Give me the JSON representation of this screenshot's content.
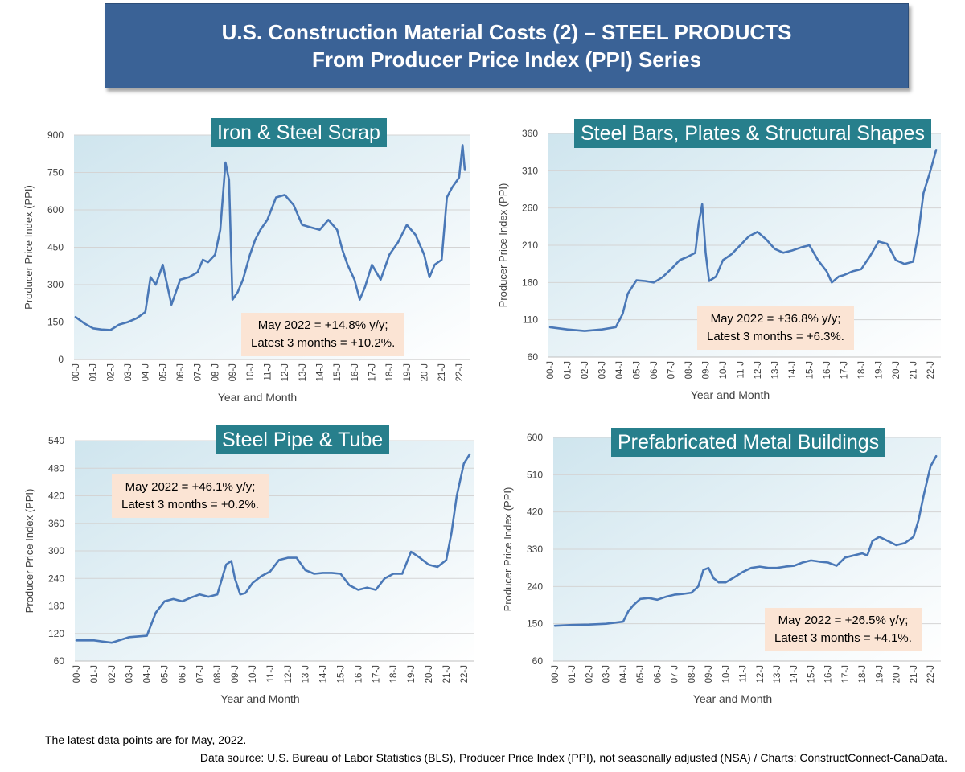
{
  "page": {
    "title_line1": "U.S. Construction Material Costs (2) – STEEL PRODUCTS",
    "title_line2": "From Producer Price Index (PPI) Series",
    "footnote1": "The latest data points are for May, 2022.",
    "footnote2": "Data source: U.S. Bureau of Labor Statistics (BLS), Producer Price Index (PPI), not seasonally adjusted (NSA) / Charts: ConstructConnect-CanaData."
  },
  "colors": {
    "banner": "#3a6296",
    "title_box": "#277f8c",
    "line": "#4a78b7",
    "note_box": "#fbe4d4"
  },
  "chart_data": [
    {
      "type": "line",
      "title": "Iron & Steel Scrap",
      "xlabel": "Year and Month",
      "ylabel": "Producer Price Index (PPI)",
      "ylim": [
        0,
        900
      ],
      "yticks": [
        0,
        150,
        300,
        450,
        600,
        750,
        900
      ],
      "xticks": [
        "00-J",
        "01-J",
        "02-J",
        "03-J",
        "04-J",
        "05-J",
        "06-J",
        "07-J",
        "08-J",
        "09-J",
        "10-J",
        "11-J",
        "12-J",
        "13-J",
        "14-J",
        "15-J",
        "16-J",
        "17-J",
        "18-J",
        "19-J",
        "20-J",
        "21-J",
        "22-J"
      ],
      "note_line1": "May 2022 = +14.8% y/y;",
      "note_line2": "Latest 3 months = +10.2%.",
      "grid": true,
      "series": [
        {
          "x": [
            2000.0,
            2000.5,
            2001.0,
            2001.5,
            2002.0,
            2002.5,
            2003.0,
            2003.5,
            2004.0,
            2004.3,
            2004.6,
            2005.0,
            2005.5,
            2006.0,
            2006.5,
            2007.0,
            2007.3,
            2007.6,
            2008.0,
            2008.3,
            2008.6,
            2008.8,
            2009.0,
            2009.3,
            2009.6,
            2010.0,
            2010.3,
            2010.6,
            2011.0,
            2011.5,
            2012.0,
            2012.5,
            2013.0,
            2013.5,
            2014.0,
            2014.5,
            2015.0,
            2015.3,
            2015.6,
            2016.0,
            2016.3,
            2016.6,
            2017.0,
            2017.5,
            2018.0,
            2018.5,
            2019.0,
            2019.5,
            2020.0,
            2020.3,
            2020.6,
            2021.0,
            2021.3,
            2021.6,
            2022.0,
            2022.2,
            2022.33
          ],
          "y": [
            170,
            145,
            125,
            120,
            118,
            140,
            150,
            165,
            190,
            330,
            300,
            380,
            220,
            320,
            330,
            350,
            400,
            390,
            420,
            520,
            790,
            720,
            240,
            270,
            320,
            420,
            480,
            520,
            560,
            650,
            660,
            620,
            540,
            530,
            520,
            560,
            520,
            440,
            380,
            320,
            240,
            290,
            380,
            320,
            420,
            470,
            540,
            500,
            420,
            330,
            380,
            400,
            650,
            690,
            730,
            860,
            760
          ]
        }
      ]
    },
    {
      "type": "line",
      "title": "Steel Bars, Plates & Structural Shapes",
      "xlabel": "Year and Month",
      "ylabel": "Producer Price Index (PPI)",
      "ylim": [
        60,
        360
      ],
      "yticks": [
        60,
        110,
        160,
        210,
        260,
        310,
        360
      ],
      "xticks": [
        "00-J",
        "01-J",
        "02-J",
        "03-J",
        "04-J",
        "05-J",
        "06-J",
        "07-J",
        "08-J",
        "09-J",
        "10-J",
        "11-J",
        "12-J",
        "13-J",
        "14-J",
        "15-J",
        "16-J",
        "17-J",
        "18-J",
        "19-J",
        "20-J",
        "21-J",
        "22-J"
      ],
      "note_line1": "May 2022 = +36.8% y/y;",
      "note_line2": "Latest 3 months = +6.3%.",
      "grid": true,
      "series": [
        {
          "x": [
            2000.0,
            2001.0,
            2002.0,
            2003.0,
            2003.8,
            2004.2,
            2004.5,
            2005.0,
            2005.5,
            2006.0,
            2006.5,
            2007.0,
            2007.5,
            2008.0,
            2008.4,
            2008.6,
            2008.8,
            2009.0,
            2009.2,
            2009.6,
            2010.0,
            2010.5,
            2011.0,
            2011.5,
            2012.0,
            2012.5,
            2013.0,
            2013.5,
            2014.0,
            2014.5,
            2015.0,
            2015.5,
            2016.0,
            2016.3,
            2016.7,
            2017.0,
            2017.5,
            2018.0,
            2018.5,
            2019.0,
            2019.5,
            2020.0,
            2020.5,
            2021.0,
            2021.3,
            2021.6,
            2022.0,
            2022.33
          ],
          "y": [
            100,
            97,
            95,
            97,
            100,
            118,
            145,
            163,
            162,
            160,
            167,
            178,
            190,
            195,
            200,
            240,
            265,
            200,
            162,
            168,
            190,
            198,
            210,
            222,
            228,
            218,
            205,
            200,
            203,
            207,
            210,
            190,
            175,
            160,
            168,
            170,
            175,
            178,
            195,
            215,
            212,
            190,
            185,
            188,
            225,
            280,
            310,
            338
          ]
        }
      ]
    },
    {
      "type": "line",
      "title": "Steel Pipe & Tube",
      "xlabel": "Year and Month",
      "ylabel": "Producer Price Index (PPI)",
      "ylim": [
        60,
        540
      ],
      "yticks": [
        60,
        120,
        180,
        240,
        300,
        360,
        420,
        480,
        540
      ],
      "xticks": [
        "00-J",
        "01-J",
        "02-J",
        "03-J",
        "04-J",
        "05-J",
        "06-J",
        "07-J",
        "08-J",
        "09-J",
        "10-J",
        "11-J",
        "12-J",
        "13-J",
        "14-J",
        "15-J",
        "16-J",
        "17-J",
        "18-J",
        "19-J",
        "20-J",
        "21-J",
        "22-J"
      ],
      "note_line1": "May 2022 = +46.1% y/y;",
      "note_line2": "Latest 3 months = +0.2%.",
      "grid": true,
      "series": [
        {
          "x": [
            2000.0,
            2001.0,
            2002.0,
            2003.0,
            2004.0,
            2004.5,
            2005.0,
            2005.5,
            2006.0,
            2006.5,
            2007.0,
            2007.5,
            2008.0,
            2008.5,
            2008.8,
            2009.0,
            2009.3,
            2009.6,
            2010.0,
            2010.5,
            2011.0,
            2011.5,
            2012.0,
            2012.5,
            2013.0,
            2013.5,
            2014.0,
            2014.5,
            2015.0,
            2015.5,
            2016.0,
            2016.5,
            2017.0,
            2017.5,
            2018.0,
            2018.5,
            2019.0,
            2019.5,
            2020.0,
            2020.5,
            2021.0,
            2021.3,
            2021.6,
            2022.0,
            2022.33
          ],
          "y": [
            105,
            105,
            100,
            112,
            115,
            165,
            190,
            195,
            190,
            198,
            205,
            200,
            205,
            270,
            278,
            240,
            205,
            208,
            230,
            245,
            255,
            280,
            285,
            285,
            258,
            250,
            252,
            252,
            250,
            225,
            215,
            220,
            215,
            240,
            250,
            250,
            298,
            285,
            270,
            265,
            280,
            340,
            420,
            490,
            510
          ]
        }
      ]
    },
    {
      "type": "line",
      "title": "Prefabricated Metal Buildings",
      "xlabel": "Year and Month",
      "ylabel": "Producer Price Index (PPI)",
      "ylim": [
        60,
        600
      ],
      "yticks": [
        60,
        150,
        240,
        330,
        420,
        510,
        600
      ],
      "xticks": [
        "00-J",
        "01-J",
        "02-J",
        "03-J",
        "04-J",
        "05-J",
        "06-J",
        "07-J",
        "08-J",
        "09-J",
        "10-J",
        "11-J",
        "12-J",
        "13-J",
        "14-J",
        "15-J",
        "16-J",
        "17-J",
        "18-J",
        "19-J",
        "20-J",
        "21-J",
        "22-J"
      ],
      "note_line1": "May 2022 = +26.5% y/y;",
      "note_line2": "Latest 3 months = +4.1%.",
      "grid": true,
      "series": [
        {
          "x": [
            2000.0,
            2001.0,
            2002.0,
            2003.0,
            2004.0,
            2004.3,
            2004.6,
            2005.0,
            2005.5,
            2006.0,
            2006.5,
            2007.0,
            2007.5,
            2008.0,
            2008.4,
            2008.7,
            2009.0,
            2009.3,
            2009.6,
            2010.0,
            2010.5,
            2011.0,
            2011.5,
            2012.0,
            2012.5,
            2013.0,
            2013.5,
            2014.0,
            2014.5,
            2015.0,
            2015.5,
            2016.0,
            2016.5,
            2017.0,
            2017.5,
            2018.0,
            2018.3,
            2018.6,
            2019.0,
            2019.5,
            2020.0,
            2020.5,
            2021.0,
            2021.3,
            2021.6,
            2022.0,
            2022.33
          ],
          "y": [
            145,
            147,
            148,
            150,
            155,
            180,
            195,
            210,
            212,
            208,
            215,
            220,
            222,
            225,
            240,
            280,
            285,
            260,
            250,
            250,
            262,
            275,
            285,
            288,
            285,
            285,
            288,
            290,
            298,
            303,
            300,
            298,
            290,
            310,
            315,
            320,
            315,
            350,
            360,
            350,
            340,
            345,
            360,
            400,
            460,
            530,
            555
          ]
        }
      ]
    }
  ]
}
